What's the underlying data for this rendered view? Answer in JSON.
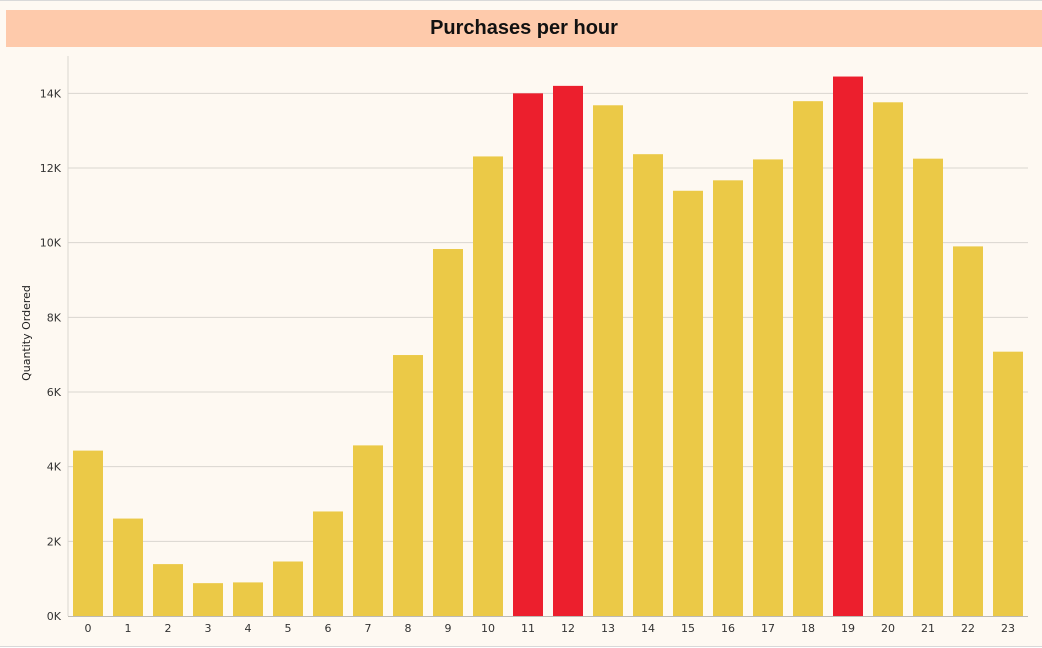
{
  "chart_data": {
    "type": "bar",
    "title": "Purchases per hour",
    "xlabel": "",
    "ylabel": "Quantity Ordered",
    "categories": [
      "0",
      "1",
      "2",
      "3",
      "4",
      "5",
      "6",
      "7",
      "8",
      "9",
      "10",
      "11",
      "12",
      "13",
      "14",
      "15",
      "16",
      "17",
      "18",
      "19",
      "20",
      "21",
      "22",
      "23"
    ],
    "values": [
      4430,
      2610,
      1390,
      880,
      900,
      1460,
      2800,
      4570,
      6990,
      9830,
      12310,
      14000,
      14200,
      13680,
      12370,
      11390,
      11670,
      12230,
      13790,
      14450,
      13760,
      12250,
      9900,
      7080
    ],
    "highlighted": [
      "11",
      "12",
      "19"
    ],
    "ylim": [
      0,
      15000
    ],
    "yticks": [
      0,
      2000,
      4000,
      6000,
      8000,
      10000,
      12000,
      14000
    ],
    "ytick_labels": [
      "0K",
      "2K",
      "4K",
      "6K",
      "8K",
      "10K",
      "12K",
      "14K"
    ],
    "grid": "horizontal",
    "colors": {
      "bar": "#ebc947",
      "highlight": "#ec1f2d",
      "grid": "#d9d6d0",
      "title_bar": "#fecaab",
      "background": "#fef9f2"
    }
  }
}
